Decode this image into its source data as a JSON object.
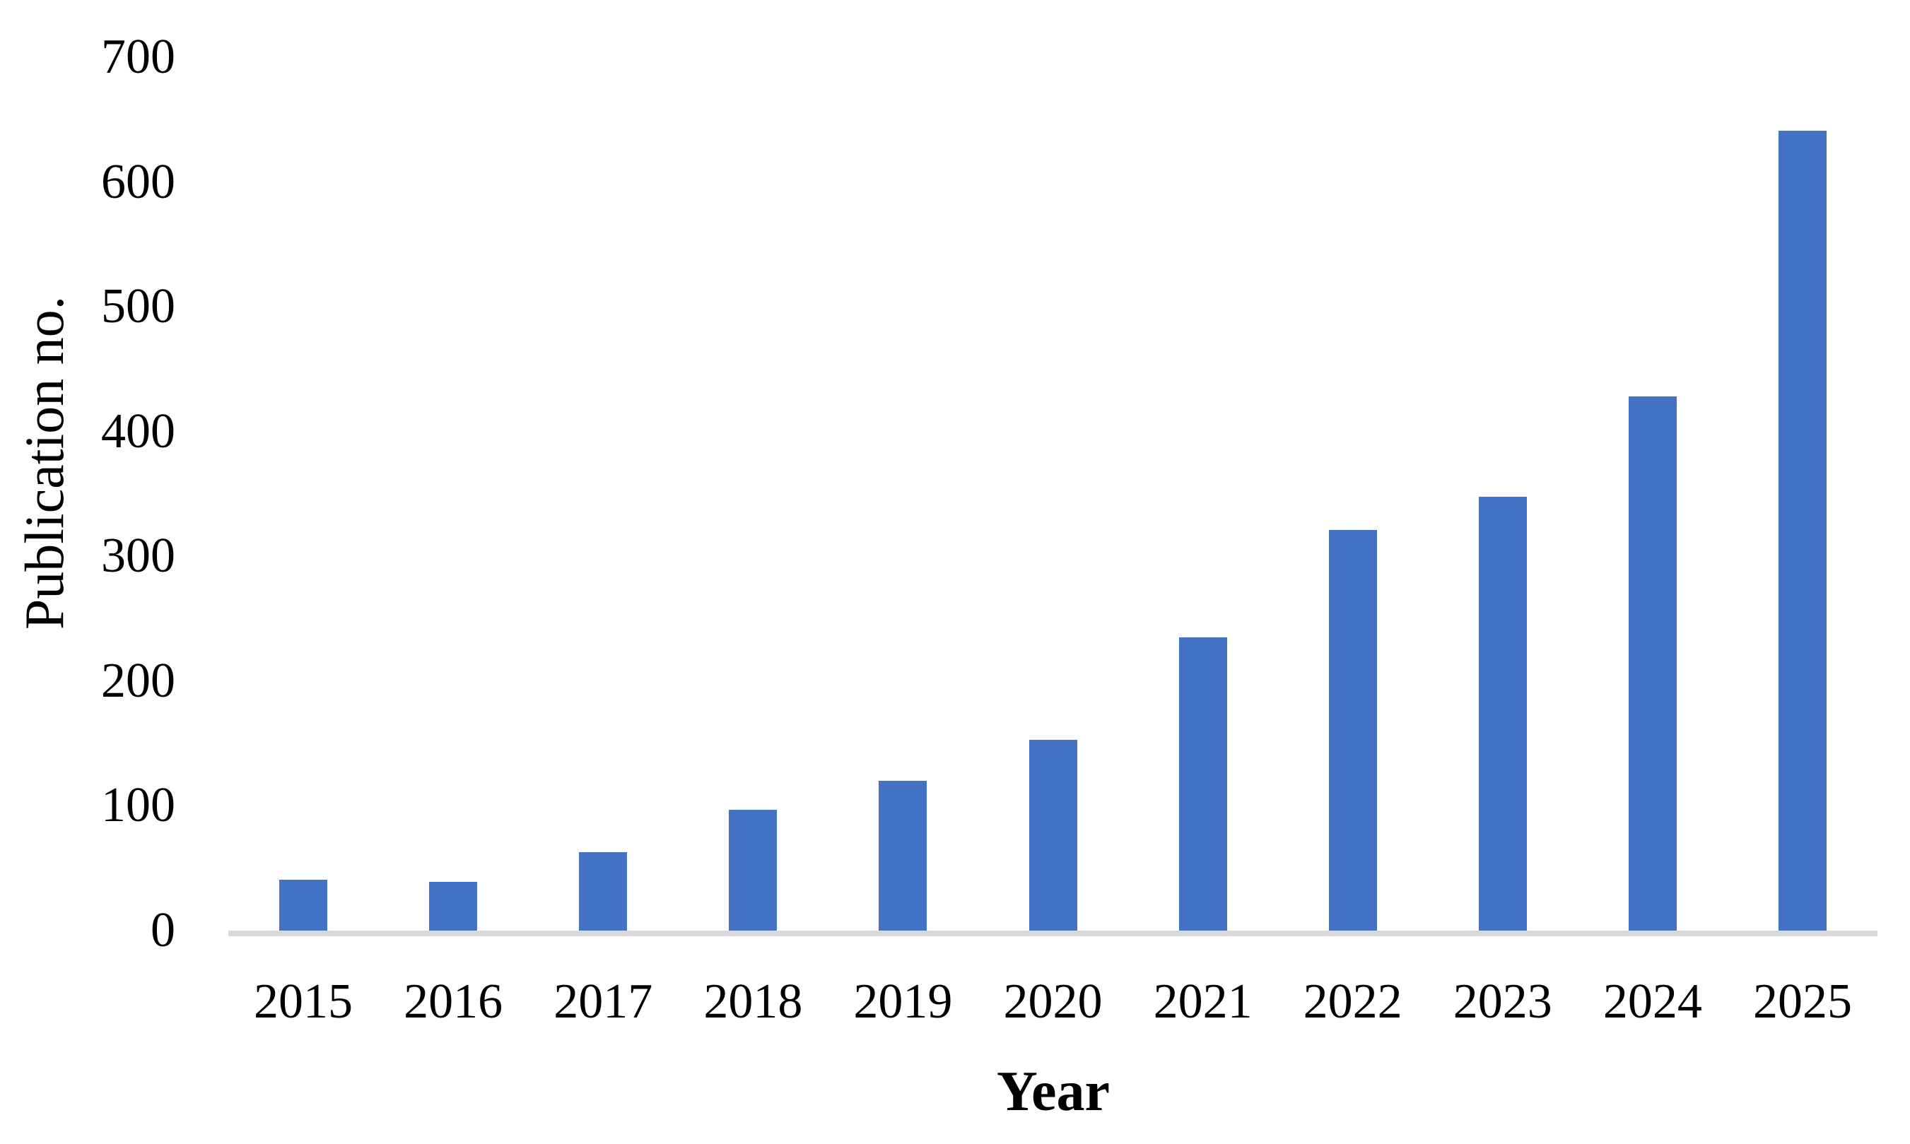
{
  "chart_data": {
    "type": "bar",
    "categories": [
      "2015",
      "2016",
      "2017",
      "2018",
      "2019",
      "2020",
      "2021",
      "2022",
      "2023",
      "2024",
      "2025"
    ],
    "values": [
      41,
      39,
      63,
      97,
      120,
      153,
      235,
      321,
      348,
      428,
      641
    ],
    "xlabel": "Year",
    "ylabel": "Publication no.",
    "ylim": [
      0,
      700
    ],
    "yticks": [
      0,
      100,
      200,
      300,
      400,
      500,
      600,
      700
    ],
    "grid": false,
    "legend": false,
    "bar_color": "#4472C4",
    "axis_line_color": "#D9D9D9",
    "text_color": "#000000",
    "background_color": "#FFFFFF"
  }
}
